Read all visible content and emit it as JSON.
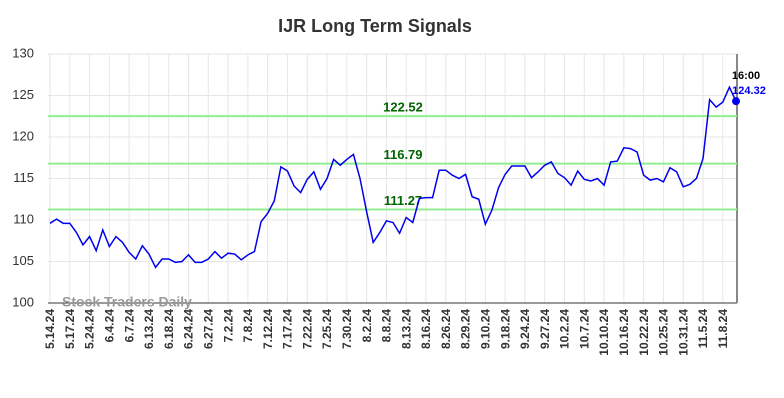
{
  "chart_data": {
    "type": "line",
    "title": "IJR Long Term Signals",
    "watermark": "Stock Traders Daily",
    "categories": [
      "5.14.24",
      null,
      null,
      "5.17.24",
      null,
      null,
      "5.24.24",
      null,
      null,
      "6.4.24",
      null,
      null,
      "6.7.24",
      null,
      null,
      "6.13.24",
      null,
      null,
      "6.18.24",
      null,
      null,
      "6.24.24",
      null,
      null,
      "6.27.24",
      null,
      null,
      "7.2.24",
      null,
      null,
      "7.8.24",
      null,
      null,
      "7.12.24",
      null,
      null,
      "7.17.24",
      null,
      null,
      "7.22.24",
      null,
      null,
      "7.25.24",
      null,
      null,
      "7.30.24",
      null,
      null,
      "8.2.24",
      null,
      null,
      "8.8.24",
      null,
      null,
      "8.13.24",
      null,
      null,
      "8.16.24",
      null,
      null,
      "8.26.24",
      null,
      null,
      "8.29.24",
      null,
      null,
      "9.10.24",
      null,
      null,
      "9.18.24",
      null,
      null,
      "9.24.24",
      null,
      null,
      "9.27.24",
      null,
      null,
      "10.2.24",
      null,
      null,
      "10.7.24",
      null,
      null,
      "10.10.24",
      null,
      null,
      "10.16.24",
      null,
      null,
      "10.22.24",
      null,
      null,
      "10.25.24",
      null,
      null,
      "10.31.24",
      null,
      null,
      "11.5.24",
      null,
      null,
      "11.8.24",
      null,
      null
    ],
    "values": [
      109.6,
      110.1,
      109.6,
      109.6,
      108.5,
      107.0,
      108.0,
      106.3,
      108.8,
      106.8,
      108.0,
      107.3,
      106.1,
      105.3,
      106.9,
      105.9,
      104.3,
      105.3,
      105.3,
      104.9,
      105.0,
      105.8,
      104.9,
      104.9,
      105.3,
      106.2,
      105.4,
      106.0,
      105.9,
      105.2,
      105.8,
      106.2,
      109.8,
      110.8,
      112.3,
      116.4,
      115.9,
      114.1,
      113.3,
      114.9,
      115.8,
      113.7,
      115.0,
      117.3,
      116.6,
      117.3,
      117.9,
      115.0,
      111.0,
      107.3,
      108.5,
      109.9,
      109.7,
      108.4,
      110.3,
      109.7,
      112.6,
      112.7,
      112.7,
      116.0,
      116.0,
      115.4,
      115.0,
      115.5,
      112.8,
      112.5,
      109.5,
      111.2,
      113.9,
      115.5,
      116.5,
      116.5,
      116.5,
      115.1,
      115.8,
      116.6,
      117.0,
      115.6,
      115.1,
      114.2,
      115.9,
      114.9,
      114.7,
      115.0,
      114.2,
      117.0,
      117.1,
      118.7,
      118.6,
      118.2,
      115.4,
      114.8,
      115.0,
      114.6,
      116.3,
      115.8,
      114.0,
      114.3,
      115.0,
      117.4,
      124.5,
      123.6,
      124.2,
      126.0,
      124.32
    ],
    "color": "#0000ee",
    "last_time": "16:00",
    "hlines": [
      {
        "value": 122.52,
        "color": "#90ee90",
        "label_color": "#006400"
      },
      {
        "value": 116.79,
        "color": "#90ee90",
        "label_color": "#006400"
      },
      {
        "value": 111.27,
        "color": "#90ee90",
        "label_color": "#006400"
      }
    ],
    "ylim": [
      100,
      130
    ],
    "yticks": [
      100,
      105,
      110,
      115,
      120,
      125,
      130
    ],
    "grid": true
  }
}
